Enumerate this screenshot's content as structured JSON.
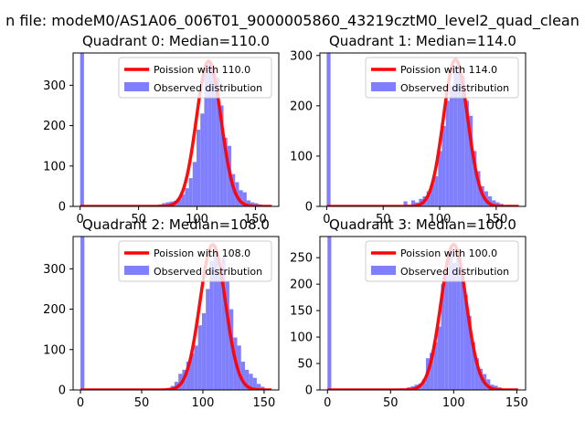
{
  "figure": {
    "suptitle": "n file: modeM0/AS1A06_006T01_9000005860_43219cztM0_level2_quad_clean"
  },
  "colors": {
    "bars": "#8080ff",
    "poisson_line": "#ff0000",
    "axes": "#000000"
  },
  "chart_data": [
    {
      "type": "bar",
      "title": "Quadrant 0: Median=110.0",
      "xlim": [
        -6,
        170
      ],
      "ylim": [
        0,
        380
      ],
      "xticks": [
        0,
        50,
        100,
        150
      ],
      "yticks": [
        0,
        100,
        200,
        300
      ],
      "legend_position": "top-right",
      "bin_width": 3.3,
      "legend": [
        "Poission with 110.0",
        "Observed distribution"
      ],
      "poisson_lambda": 110.0,
      "poisson_peak": 360,
      "histogram": [
        {
          "x": 0,
          "y": 380
        },
        {
          "x": 50,
          "y": 2
        },
        {
          "x": 60,
          "y": 3
        },
        {
          "x": 66.6,
          "y": 5
        },
        {
          "x": 69.9,
          "y": 8
        },
        {
          "x": 73.2,
          "y": 10
        },
        {
          "x": 76.5,
          "y": 12
        },
        {
          "x": 79.8,
          "y": 14
        },
        {
          "x": 83.1,
          "y": 20
        },
        {
          "x": 86.4,
          "y": 30
        },
        {
          "x": 89.7,
          "y": 45
        },
        {
          "x": 93,
          "y": 70
        },
        {
          "x": 96.3,
          "y": 110
        },
        {
          "x": 99.6,
          "y": 190
        },
        {
          "x": 102.9,
          "y": 230
        },
        {
          "x": 106.2,
          "y": 330
        },
        {
          "x": 109.5,
          "y": 360
        },
        {
          "x": 112.8,
          "y": 340
        },
        {
          "x": 116.1,
          "y": 320
        },
        {
          "x": 119.4,
          "y": 250
        },
        {
          "x": 122.7,
          "y": 170
        },
        {
          "x": 126,
          "y": 150
        },
        {
          "x": 129.3,
          "y": 80
        },
        {
          "x": 132.6,
          "y": 60
        },
        {
          "x": 135.9,
          "y": 40
        },
        {
          "x": 139.2,
          "y": 35
        },
        {
          "x": 142.5,
          "y": 15
        },
        {
          "x": 145.8,
          "y": 10
        },
        {
          "x": 149.1,
          "y": 8
        },
        {
          "x": 152.4,
          "y": 5
        },
        {
          "x": 160,
          "y": 3
        }
      ]
    },
    {
      "type": "bar",
      "title": "Quadrant 1: Median=114.0",
      "xlim": [
        -6,
        176
      ],
      "ylim": [
        0,
        305
      ],
      "xticks": [
        0,
        50,
        100,
        150
      ],
      "yticks": [
        0,
        100,
        200,
        300
      ],
      "legend_position": "top-right",
      "bin_width": 3.4,
      "legend": [
        "Poission with 114.0",
        "Observed distribution"
      ],
      "poisson_lambda": 114.0,
      "poisson_peak": 292,
      "histogram": [
        {
          "x": 0,
          "y": 305
        },
        {
          "x": 68,
          "y": 10
        },
        {
          "x": 74.8,
          "y": 12
        },
        {
          "x": 78.2,
          "y": 8
        },
        {
          "x": 81.6,
          "y": 15
        },
        {
          "x": 85,
          "y": 20
        },
        {
          "x": 88.4,
          "y": 30
        },
        {
          "x": 91.8,
          "y": 45
        },
        {
          "x": 95.2,
          "y": 60
        },
        {
          "x": 98.6,
          "y": 110
        },
        {
          "x": 102,
          "y": 160
        },
        {
          "x": 105.4,
          "y": 210
        },
        {
          "x": 108.8,
          "y": 240
        },
        {
          "x": 112.2,
          "y": 280
        },
        {
          "x": 115.6,
          "y": 270
        },
        {
          "x": 119,
          "y": 260
        },
        {
          "x": 122.4,
          "y": 210
        },
        {
          "x": 125.8,
          "y": 180
        },
        {
          "x": 129.2,
          "y": 110
        },
        {
          "x": 132.6,
          "y": 70
        },
        {
          "x": 136,
          "y": 40
        },
        {
          "x": 139.4,
          "y": 30
        },
        {
          "x": 142.8,
          "y": 20
        },
        {
          "x": 146.2,
          "y": 12
        },
        {
          "x": 149.6,
          "y": 8
        },
        {
          "x": 153,
          "y": 5
        },
        {
          "x": 160,
          "y": 3
        }
      ]
    },
    {
      "type": "bar",
      "title": "Quadrant 2: Median=108.0",
      "xlim": [
        -6,
        162
      ],
      "ylim": [
        0,
        380
      ],
      "xticks": [
        0,
        50,
        100,
        150
      ],
      "yticks": [
        0,
        100,
        200,
        300
      ],
      "legend_position": "top-right",
      "bin_width": 3.2,
      "legend": [
        "Poission with 108.0",
        "Observed distribution"
      ],
      "poisson_lambda": 108.0,
      "poisson_peak": 360,
      "histogram": [
        {
          "x": 0,
          "y": 380
        },
        {
          "x": 70.4,
          "y": 5
        },
        {
          "x": 73.6,
          "y": 10
        },
        {
          "x": 76.8,
          "y": 20
        },
        {
          "x": 80,
          "y": 40
        },
        {
          "x": 83.2,
          "y": 50
        },
        {
          "x": 86.4,
          "y": 70
        },
        {
          "x": 89.6,
          "y": 90
        },
        {
          "x": 92.8,
          "y": 110
        },
        {
          "x": 96,
          "y": 160
        },
        {
          "x": 99.2,
          "y": 190
        },
        {
          "x": 102.4,
          "y": 250
        },
        {
          "x": 105.6,
          "y": 320
        },
        {
          "x": 108.8,
          "y": 340
        },
        {
          "x": 112,
          "y": 300
        },
        {
          "x": 115.2,
          "y": 330
        },
        {
          "x": 118.4,
          "y": 270
        },
        {
          "x": 121.6,
          "y": 200
        },
        {
          "x": 124.8,
          "y": 130
        },
        {
          "x": 128,
          "y": 110
        },
        {
          "x": 131.2,
          "y": 70
        },
        {
          "x": 134.4,
          "y": 50
        },
        {
          "x": 137.6,
          "y": 40
        },
        {
          "x": 140.8,
          "y": 30
        },
        {
          "x": 144,
          "y": 15
        },
        {
          "x": 147.2,
          "y": 8
        },
        {
          "x": 150.4,
          "y": 3
        }
      ]
    },
    {
      "type": "bar",
      "title": "Quadrant 3: Median=100.0",
      "xlim": [
        -6,
        157
      ],
      "ylim": [
        0,
        290
      ],
      "xticks": [
        0,
        50,
        100,
        150
      ],
      "yticks": [
        0,
        50,
        100,
        150,
        200,
        250
      ],
      "legend_position": "top-right",
      "bin_width": 3.0,
      "legend": [
        "Poission with 100.0",
        "Observed distribution"
      ],
      "poisson_lambda": 100.0,
      "poisson_peak": 275,
      "histogram": [
        {
          "x": 0,
          "y": 290
        },
        {
          "x": 57,
          "y": 3
        },
        {
          "x": 63,
          "y": 5
        },
        {
          "x": 66,
          "y": 7
        },
        {
          "x": 69,
          "y": 10
        },
        {
          "x": 72,
          "y": 12
        },
        {
          "x": 75,
          "y": 20
        },
        {
          "x": 78,
          "y": 60
        },
        {
          "x": 81,
          "y": 70
        },
        {
          "x": 84,
          "y": 90
        },
        {
          "x": 87,
          "y": 120
        },
        {
          "x": 90,
          "y": 200
        },
        {
          "x": 93,
          "y": 230
        },
        {
          "x": 96,
          "y": 270
        },
        {
          "x": 99,
          "y": 240
        },
        {
          "x": 102,
          "y": 260
        },
        {
          "x": 105,
          "y": 230
        },
        {
          "x": 108,
          "y": 180
        },
        {
          "x": 111,
          "y": 140
        },
        {
          "x": 114,
          "y": 90
        },
        {
          "x": 117,
          "y": 60
        },
        {
          "x": 120,
          "y": 40
        },
        {
          "x": 123,
          "y": 30
        },
        {
          "x": 126,
          "y": 20
        },
        {
          "x": 129,
          "y": 10
        },
        {
          "x": 132,
          "y": 8
        },
        {
          "x": 135,
          "y": 5
        },
        {
          "x": 141,
          "y": 2
        }
      ]
    }
  ]
}
